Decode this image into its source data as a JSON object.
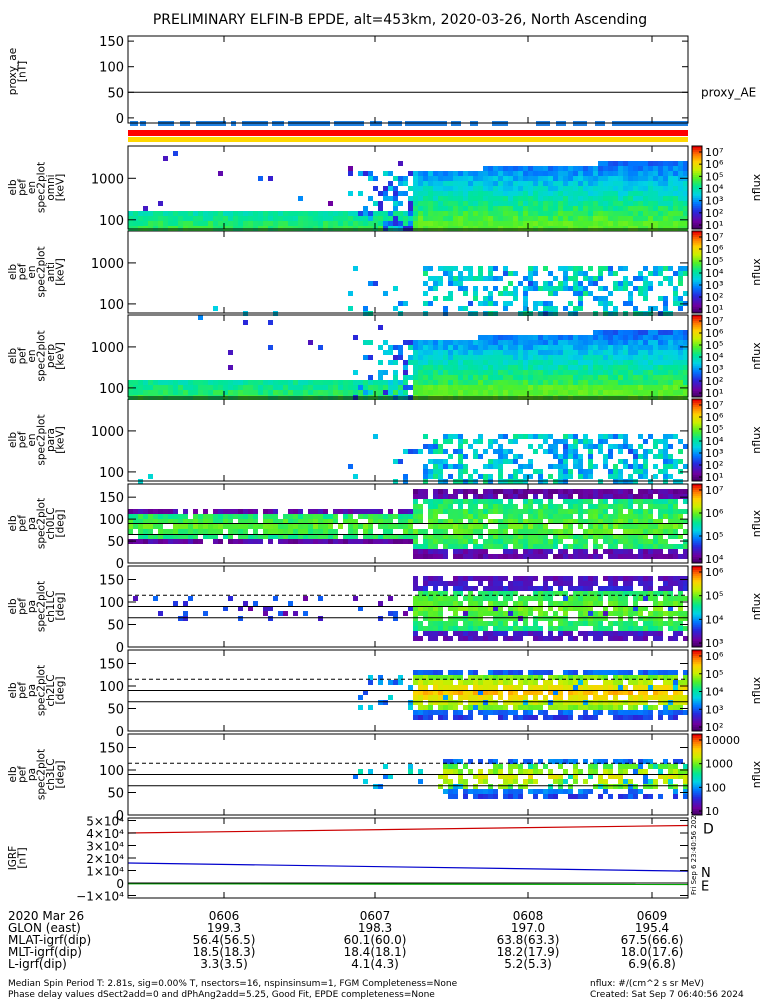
{
  "title": "PRELIMINARY ELFIN-B EPDE, alt=453km, 2020-03-26, North Ascending",
  "colors": {
    "flag_blue": "#1e7fe0",
    "bar_red": "#ff0000",
    "bar_yellow": "#ffd700",
    "igrf_D": "#cc0000",
    "igrf_N": "#0000cc",
    "igrf_E": "#00aa00"
  },
  "panels": {
    "ae": {
      "ylabel": [
        "proxy_ae",
        "[nT]"
      ],
      "ticks": [
        "150",
        "100",
        "50",
        "0"
      ],
      "legend": "proxy_AE"
    },
    "spec": [
      {
        "ylabel": [
          "elb",
          "pef",
          "en",
          "spec2plot",
          "omni",
          "[keV]"
        ]
      },
      {
        "ylabel": [
          "elb",
          "pef",
          "en",
          "spec2plot",
          "anti",
          "[keV]"
        ]
      },
      {
        "ylabel": [
          "elb",
          "pef",
          "en",
          "spec2plot",
          "perp",
          "[keV]"
        ]
      },
      {
        "ylabel": [
          "elb",
          "pef",
          "en",
          "spec2plot",
          "para",
          "[keV]"
        ]
      }
    ],
    "spec_ticks": [
      "1000",
      "100"
    ],
    "pa": [
      {
        "ylabel": [
          "elb",
          "pef",
          "pa",
          "spec2plot",
          "ch0LC",
          "[deg]"
        ]
      },
      {
        "ylabel": [
          "elb",
          "pef",
          "pa",
          "spec2plot",
          "ch1LC",
          "[deg]"
        ]
      },
      {
        "ylabel": [
          "elb",
          "pef",
          "pa",
          "spec2plot",
          "ch2LC",
          "[deg]"
        ]
      },
      {
        "ylabel": [
          "elb",
          "pef",
          "pa",
          "spec2plot",
          "ch3LC",
          "[deg]"
        ]
      }
    ],
    "pa_ticks": [
      "150",
      "100",
      "50",
      "0"
    ],
    "igrf": {
      "ylabel": [
        "IGRF",
        "[nT]"
      ],
      "ticks": [
        "5×10⁴",
        "4×10⁴",
        "3×10⁴",
        "2×10⁴",
        "1×10⁴",
        "0",
        "−1×10⁴"
      ],
      "labels": {
        "D": "D",
        "N": "N",
        "E": "E"
      }
    }
  },
  "colorbars": [
    {
      "ticks": [
        "10⁷",
        "10⁶",
        "10⁵",
        "10⁴",
        "10³",
        "10²",
        "10¹"
      ],
      "label": "nflux"
    },
    {
      "ticks": [
        "10⁷",
        "10⁶",
        "10⁵",
        "10⁴",
        "10³",
        "10²",
        "10¹"
      ],
      "label": "nflux"
    },
    {
      "ticks": [
        "10⁷",
        "10⁶",
        "10⁵",
        "10⁴",
        "10³",
        "10²",
        "10¹"
      ],
      "label": "nflux"
    },
    {
      "ticks": [
        "10⁷",
        "10⁶",
        "10⁵",
        "10⁴",
        "10³",
        "10²",
        "10¹"
      ],
      "label": "nflux"
    },
    {
      "ticks": [
        "10⁷",
        "10⁶",
        "10⁵",
        "10⁴"
      ],
      "label": "nflux"
    },
    {
      "ticks": [
        "10⁶",
        "10⁵",
        "10⁴",
        "10³"
      ],
      "label": "nflux"
    },
    {
      "ticks": [
        "10⁶",
        "10⁵",
        "10⁴",
        "10³",
        "10²"
      ],
      "label": "nflux"
    },
    {
      "ticks": [
        "10000",
        "1000",
        "100",
        "10"
      ],
      "label": "nflux"
    }
  ],
  "footer": {
    "rows": [
      {
        "label": "2020 Mar 26",
        "values": [
          "0606",
          "0607",
          "0608",
          "0609"
        ]
      },
      {
        "label": "GLON (east)",
        "values": [
          "199.3",
          "198.3",
          "197.0",
          "195.4"
        ]
      },
      {
        "label": "MLAT-igrf(dip)",
        "values": [
          "56.4(56.5)",
          "60.1(60.0)",
          "63.8(63.3)",
          "67.5(66.6)"
        ]
      },
      {
        "label": "MLT-igrf(dip)",
        "values": [
          "18.5(18.3)",
          "18.4(18.1)",
          "18.2(17.9)",
          "18.0(17.6)"
        ]
      },
      {
        "label": "L-igrf(dip)",
        "values": [
          "3.3(3.5)",
          "4.1(4.3)",
          "5.2(5.3)",
          "6.9(6.8)"
        ]
      }
    ],
    "note1": "Median Spin Period T: 2.81s, sig=0.00% T, nsectors=16, nspinsinsum=1, FGM Completeness=None",
    "note2": "Phase delay values dSect2add=0 and dPhAng2add=5.25, Good Fit, EPDE completeness=None",
    "units": "nflux: #/(cm^2 s sr MeV)",
    "created": "Created: Sat Sep  7 06:40:56 2024",
    "stamp": "Fri Sep  6 23:40:56 2024"
  },
  "chart_data": {
    "type": "heatmap",
    "title": "PRELIMINARY ELFIN-B EPDE, alt=453km, 2020-03-26, North Ascending",
    "x_ticks": [
      "0606",
      "0607",
      "0608",
      "0609"
    ],
    "series_ae": {
      "name": "proxy_AE",
      "ylim": [
        -10,
        160
      ],
      "value": 50
    },
    "energy_ylim_keV": [
      60,
      6000
    ],
    "pa_ylim_deg": [
      0,
      180
    ],
    "igrf": {
      "ylim": [
        -12000,
        52000
      ],
      "D": {
        "start": 40000,
        "end": 46000
      },
      "N": {
        "start": 16000,
        "end": 9500
      },
      "E": {
        "start": -600,
        "end": -1200
      }
    }
  }
}
